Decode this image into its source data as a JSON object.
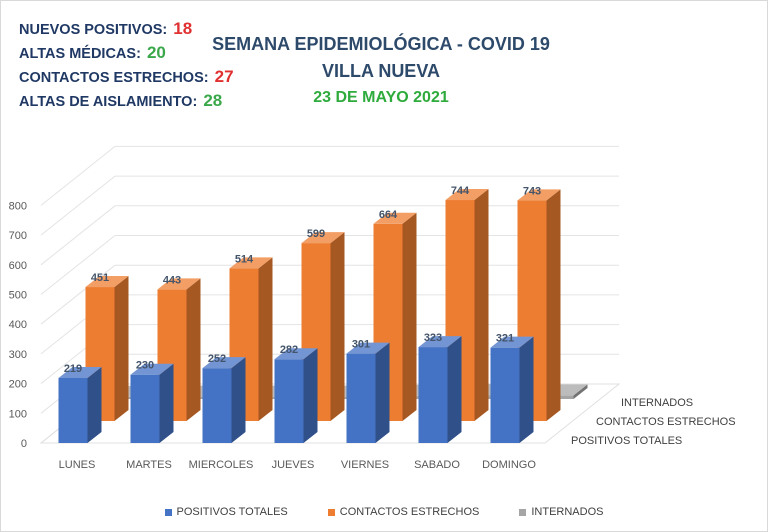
{
  "stats": [
    {
      "label": "NUEVOS POSITIVOS:",
      "value": "18",
      "color": "#e03030"
    },
    {
      "label": "ALTAS MÉDICAS:",
      "value": "20",
      "color": "#3aa84a"
    },
    {
      "label": "CONTACTOS ESTRECHOS:",
      "value": "27",
      "color": "#e03030"
    },
    {
      "label": "ALTAS DE AISLAMIENTO:",
      "value": "28",
      "color": "#3aa84a"
    }
  ],
  "header": {
    "title1": "SEMANA EPIDEMIOLÓGICA - COVID 19",
    "title2": "VILLA NUEVA",
    "date": "23 DE MAYO 2021",
    "date_color": "#2eab3c"
  },
  "chart_data": {
    "type": "bar",
    "categories": [
      "LUNES",
      "MARTES",
      "MIERCOLES",
      "JUEVES",
      "VIERNES",
      "SABADO",
      "DOMINGO"
    ],
    "series": [
      {
        "name": "POSITIVOS TOTALES",
        "values": [
          219,
          230,
          252,
          282,
          301,
          323,
          321
        ],
        "color": "#4472c4"
      },
      {
        "name": "CONTACTOS ESTRECHOS",
        "values": [
          451,
          443,
          514,
          599,
          664,
          744,
          743
        ],
        "color": "#ed7d31"
      },
      {
        "name": "INTERNADOS",
        "values": [
          7,
          8,
          8,
          8,
          11,
          13,
          12
        ],
        "color": "#a5a5a5"
      }
    ],
    "yticks": [
      0,
      100,
      200,
      300,
      400,
      500,
      600,
      700,
      800
    ],
    "ylim": [
      0,
      800
    ],
    "grid": true,
    "legend": "bottom"
  }
}
